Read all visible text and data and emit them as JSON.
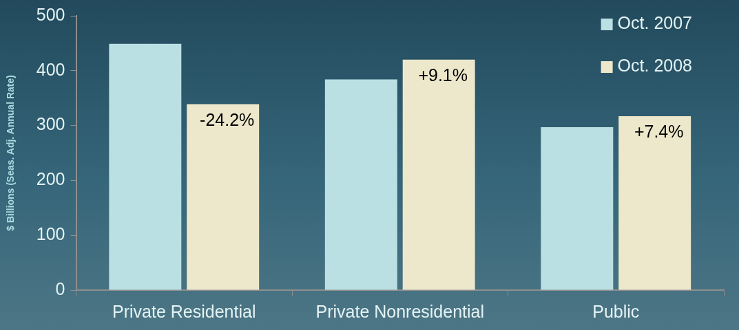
{
  "chart_data": {
    "type": "bar",
    "ylabel": "$ Billions (Seas. Adj. Annual Rate)",
    "categories": [
      "Private Residential",
      "Private Nonresidential",
      "Public"
    ],
    "series": [
      {
        "name": "Oct. 2007",
        "color": "#bbe0e3",
        "values": [
          449,
          384,
          297
        ]
      },
      {
        "name": "Oct. 2008",
        "color": "#ede8cb",
        "values": [
          339,
          420,
          317
        ]
      }
    ],
    "annotations": [
      {
        "text": "-24.2%",
        "x": "Private Residential",
        "y": 339
      },
      {
        "text": "+9.1%",
        "x": "Private Nonresidential",
        "y": 420
      },
      {
        "text": "+7.4%",
        "x": "Public",
        "y": 317
      }
    ],
    "ylim": [
      0,
      500
    ],
    "yticks": [
      0,
      100,
      200,
      300,
      400,
      500
    ],
    "grid": false,
    "legend": "top right"
  }
}
